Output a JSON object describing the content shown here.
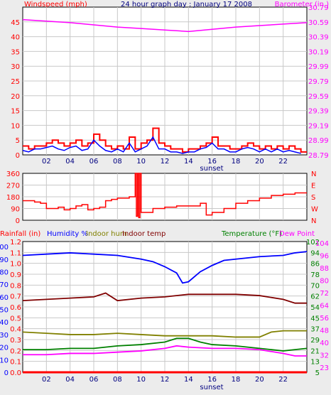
{
  "title": "24 hour graph day : January 17 2008",
  "colors": {
    "wind": "#ff0000",
    "baro": "#ff00ff",
    "dir": "#ff0000",
    "rain": "#ff0000",
    "humidity": "#0000ff",
    "indoor_hum": "#808000",
    "indoor_temp": "#800000",
    "temperature": "#008000",
    "dew_point": "#ff00ff",
    "grid": "#c8c8c8"
  },
  "x_ticks": [
    "02",
    "04",
    "06",
    "08",
    "10",
    "12",
    "14",
    "16",
    "18",
    "20",
    "22"
  ],
  "sunset_label": "sunset",
  "chart_data": [
    {
      "type": "line",
      "name": "wind-baro-panel",
      "title": "24 hour graph day : January 17 2008",
      "y_left_label": "Windspeed (mph)",
      "y_right_label": "Barometer (in.)",
      "y_left_ticks": [
        "0",
        "5",
        "10",
        "15",
        "20",
        "25",
        "30",
        "35",
        "40",
        "45"
      ],
      "y_right_ticks": [
        "28.79",
        "28.99",
        "29.19",
        "29.39",
        "29.59",
        "29.79",
        "29.99",
        "30.19",
        "30.39",
        "30.59",
        "30.79"
      ],
      "y_left_range": [
        0,
        50
      ],
      "y_right_range": [
        28.79,
        30.79
      ],
      "series": [
        {
          "key": "baro",
          "axis": "right",
          "hours": [
            0,
            2,
            4,
            6,
            8,
            10,
            12,
            14,
            16,
            18,
            20,
            22,
            24
          ],
          "values": [
            30.62,
            30.6,
            30.58,
            30.55,
            30.52,
            30.5,
            30.48,
            30.46,
            30.49,
            30.52,
            30.54,
            30.56,
            30.58
          ]
        },
        {
          "key": "gust",
          "axis": "left",
          "step": true,
          "hours": [
            0,
            0.5,
            1,
            1.5,
            2,
            2.5,
            3,
            3.5,
            4,
            4.5,
            5,
            5.5,
            6,
            6.5,
            7,
            7.5,
            8,
            8.5,
            9,
            9.5,
            10,
            10.5,
            11,
            11.5,
            12,
            12.5,
            13,
            13.5,
            14,
            14.5,
            15,
            15.5,
            16,
            16.5,
            17,
            17.5,
            18,
            18.5,
            19,
            19.5,
            20,
            20.5,
            21,
            21.5,
            22,
            22.5,
            23,
            23.5
          ],
          "values": [
            3,
            2,
            3,
            3,
            4,
            5,
            4,
            3,
            4,
            5,
            3,
            4,
            7,
            5,
            3,
            2,
            3,
            2,
            6,
            2,
            4,
            5,
            9,
            4,
            3,
            2,
            2,
            1,
            2,
            2,
            3,
            4,
            6,
            3,
            3,
            2,
            2,
            3,
            4,
            3,
            2,
            3,
            2,
            3,
            2,
            3,
            2,
            1
          ]
        },
        {
          "key": "wind",
          "axis": "left",
          "hours": [
            0,
            0.5,
            1,
            1.5,
            2,
            2.5,
            3,
            3.5,
            4,
            4.5,
            5,
            5.5,
            6,
            6.5,
            7,
            7.5,
            8,
            8.5,
            9,
            9.5,
            10,
            10.5,
            11,
            11.5,
            12,
            12.5,
            13,
            13.5,
            14,
            14.5,
            15,
            15.5,
            16,
            16.5,
            17,
            17.5,
            18,
            18.5,
            19,
            19.5,
            20,
            20.5,
            21,
            21.5,
            22,
            22.5,
            23,
            23.5
          ],
          "values": [
            1.5,
            1,
            2,
            2,
            2.5,
            3,
            2,
            1.5,
            2.5,
            3,
            1.5,
            2,
            5,
            3,
            1.5,
            1,
            2,
            1,
            4,
            1,
            2,
            3,
            6,
            2,
            2,
            1,
            1,
            0.5,
            1,
            1,
            2,
            2.5,
            4,
            2,
            2,
            1,
            1,
            2,
            2.5,
            2,
            1,
            2,
            1,
            2,
            1,
            1.5,
            1,
            0.5
          ]
        }
      ]
    },
    {
      "type": "line",
      "name": "wind-direction-panel",
      "y_left_ticks": [
        "0",
        "90",
        "180",
        "270",
        "360"
      ],
      "y_right_ticks": [
        "N",
        "W",
        "S",
        "E",
        "N"
      ],
      "y_range": [
        0,
        360
      ],
      "series": [
        {
          "key": "dir",
          "step": true,
          "hours": [
            0,
            1,
            1.5,
            2,
            3,
            3.5,
            4,
            4.5,
            5,
            5.5,
            6,
            6.5,
            7,
            7.5,
            8,
            9,
            9.5,
            9.6,
            9.7,
            9.8,
            9.9,
            10,
            11,
            12,
            13,
            14,
            15,
            15.5,
            16,
            17,
            18,
            19,
            20,
            21,
            22,
            23,
            24
          ],
          "values": [
            150,
            140,
            130,
            90,
            100,
            80,
            90,
            110,
            120,
            80,
            90,
            100,
            150,
            160,
            170,
            180,
            360,
            30,
            360,
            20,
            360,
            60,
            90,
            100,
            110,
            110,
            130,
            40,
            60,
            90,
            130,
            150,
            170,
            190,
            200,
            210,
            210
          ]
        }
      ]
    },
    {
      "type": "line",
      "name": "temp-humidity-panel",
      "legend": [
        "Rainfall (in)",
        "Humidity %",
        "Indoor hum",
        "Indoor temp",
        "Temperature (°F)",
        "Dew Point"
      ],
      "y_rain_ticks": [
        "0.0",
        "0.1",
        "0.2",
        "0.3",
        "0.4",
        "0.5",
        "0.6",
        "0.7",
        "0.8",
        "0.9",
        "1.0",
        "1.1",
        "1.2"
      ],
      "y_hum_ticks": [
        "0",
        "10",
        "20",
        "30",
        "40",
        "50",
        "60",
        "70",
        "80",
        "90",
        "100"
      ],
      "y_temp_ticks": [
        "5",
        "13",
        "21",
        "29",
        "37",
        "45",
        "54",
        "62",
        "70",
        "78",
        "86",
        "94",
        "102"
      ],
      "y_temp_ticks_b": [
        "104",
        "96",
        "88",
        "80",
        "72",
        "64",
        "56",
        "48",
        "40",
        "32",
        "23"
      ],
      "y_hum_range": [
        0,
        104
      ],
      "series": [
        {
          "key": "rain",
          "hours": [
            0,
            24
          ],
          "values": [
            0,
            0
          ]
        },
        {
          "key": "humidity",
          "hours": [
            0,
            2,
            4,
            6,
            8,
            10,
            11,
            12,
            13,
            13.5,
            14,
            15,
            16,
            17,
            18,
            20,
            22,
            23,
            24
          ],
          "values": [
            93,
            94,
            95,
            94,
            93,
            90,
            88,
            84,
            79,
            71,
            72,
            80,
            85,
            89,
            90,
            92,
            93,
            95,
            96
          ]
        },
        {
          "key": "indoor_hum",
          "hours": [
            0,
            2,
            4,
            6,
            8,
            10,
            12,
            14,
            16,
            18,
            20,
            21,
            22,
            24
          ],
          "values": [
            32,
            31,
            30,
            30,
            31,
            30,
            29,
            29,
            29,
            28,
            28,
            32,
            33,
            33
          ]
        },
        {
          "key": "indoor_temp",
          "hours": [
            0,
            2,
            4,
            6,
            7,
            8,
            10,
            12,
            14,
            16,
            18,
            20,
            22,
            23,
            24
          ],
          "values": [
            57,
            58,
            59,
            60,
            63,
            57,
            59,
            60,
            62,
            62,
            62,
            61,
            58,
            55,
            55
          ]
        },
        {
          "key": "temperature",
          "hours": [
            0,
            2,
            4,
            6,
            8,
            10,
            12,
            13,
            14,
            15,
            16,
            18,
            20,
            22,
            23,
            24
          ],
          "values": [
            18,
            18,
            19,
            19,
            21,
            22,
            24,
            27,
            27,
            24,
            22,
            21,
            19,
            17,
            18,
            19
          ]
        },
        {
          "key": "dew_point",
          "hours": [
            0,
            2,
            4,
            6,
            8,
            10,
            12,
            13,
            14,
            16,
            18,
            20,
            22,
            23,
            24
          ],
          "values": [
            14,
            14,
            15,
            15,
            16,
            17,
            19,
            21,
            20,
            19,
            19,
            18,
            15,
            13,
            13
          ]
        }
      ]
    }
  ]
}
